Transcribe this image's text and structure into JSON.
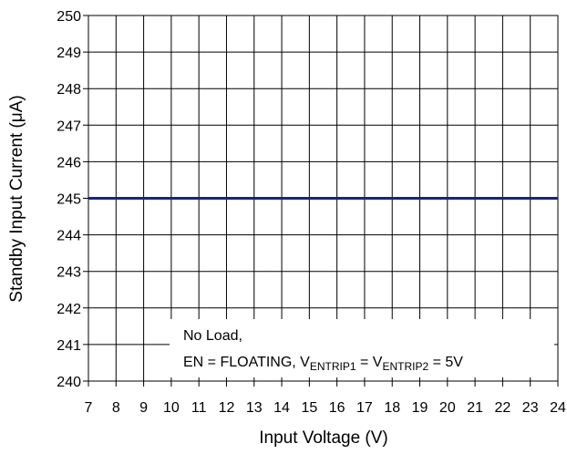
{
  "chart_data": {
    "type": "line",
    "x": [
      7,
      24
    ],
    "series": [
      {
        "name": null,
        "color": "#1a237e",
        "values": [
          245,
          245
        ]
      }
    ],
    "xlim": [
      7,
      24
    ],
    "xticks": [
      7,
      8,
      9,
      10,
      11,
      12,
      13,
      14,
      15,
      16,
      17,
      18,
      19,
      20,
      21,
      22,
      23,
      24
    ],
    "ylim": [
      240,
      250
    ],
    "yticks": [
      240,
      241,
      242,
      243,
      244,
      245,
      246,
      247,
      248,
      249,
      250
    ],
    "grid": true,
    "x_label": "Input Voltage (V)",
    "y_label": "Standby Input Current (μA)",
    "annotation": {
      "line1": "No Load,",
      "line2": [
        "EN = FLOATING, V",
        "ENTRIP1",
        " = V",
        "ENTRIP2",
        " = 5V"
      ]
    }
  }
}
